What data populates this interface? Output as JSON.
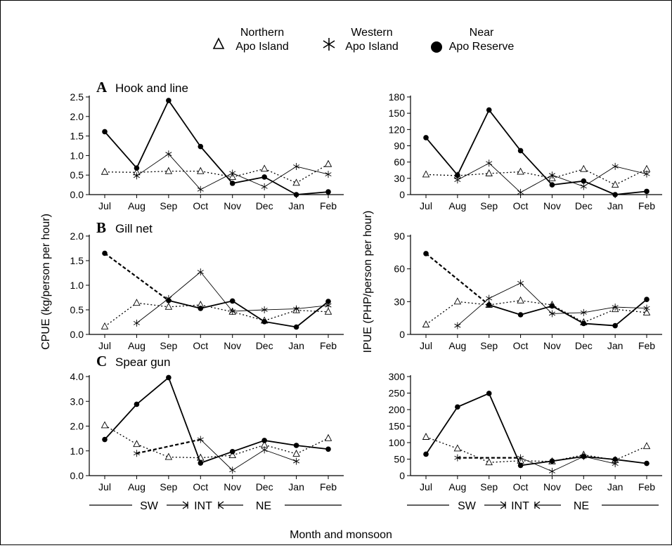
{
  "legend": [
    {
      "marker": "triangle",
      "line1": "Northern",
      "line2": "Apo Island"
    },
    {
      "marker": "asterisk",
      "line1": "Western",
      "line2": "Apo Island"
    },
    {
      "marker": "circle",
      "line1": "Near",
      "line2": "Apo Reserve"
    }
  ],
  "y_label_left": "CPUE (kg/person per hour)",
  "y_label_right": "IPUE (PHP/person per hour)",
  "x_label": "Month and monsoon",
  "panel_titles": [
    {
      "letter": "A",
      "text": "Hook and line"
    },
    {
      "letter": "B",
      "text": "Gill net"
    },
    {
      "letter": "C",
      "text": "Spear gun"
    }
  ],
  "monsoon": [
    "SW",
    "INT",
    "NE"
  ],
  "chart_data": [
    {
      "type": "line",
      "panel": "A",
      "measure": "CPUE",
      "categories": [
        "Jul",
        "Aug",
        "Sep",
        "Oct",
        "Nov",
        "Dec",
        "Jan",
        "Feb"
      ],
      "ylim": [
        0,
        2.5
      ],
      "yticks": [
        "0.0",
        "0.5",
        "1.0",
        "1.5",
        "2.0",
        "2.5"
      ],
      "series": [
        {
          "name": "Northern Apo Island",
          "values": [
            0.58,
            0.57,
            0.6,
            0.6,
            0.45,
            0.66,
            0.3,
            0.78
          ]
        },
        {
          "name": "Western Apo Island",
          "values": [
            null,
            0.48,
            1.04,
            0.13,
            0.55,
            0.2,
            0.72,
            0.52
          ]
        },
        {
          "name": "Near Apo Reserve",
          "values": [
            1.61,
            0.68,
            2.41,
            1.23,
            0.29,
            0.45,
            0.0,
            0.07
          ]
        }
      ]
    },
    {
      "type": "line",
      "panel": "A",
      "measure": "IPUE",
      "categories": [
        "Jul",
        "Aug",
        "Sep",
        "Oct",
        "Nov",
        "Dec",
        "Jan",
        "Feb"
      ],
      "ylim": [
        0,
        180
      ],
      "yticks": [
        "0",
        "30",
        "60",
        "90",
        "120",
        "150",
        "180"
      ],
      "series": [
        {
          "name": "Northern Apo Island",
          "values": [
            37,
            35,
            39,
            42,
            30,
            47,
            18,
            47
          ]
        },
        {
          "name": "Western Apo Island",
          "values": [
            null,
            27,
            58,
            4,
            36,
            15,
            52,
            38
          ]
        },
        {
          "name": "Near Apo Reserve",
          "values": [
            105,
            36,
            156,
            81,
            18,
            25,
            0,
            6
          ]
        }
      ]
    },
    {
      "type": "line",
      "panel": "B",
      "measure": "CPUE",
      "categories": [
        "Jul",
        "Aug",
        "Sep",
        "Oct",
        "Nov",
        "Dec",
        "Jan",
        "Feb"
      ],
      "ylim": [
        0,
        2.0
      ],
      "yticks": [
        "0.0",
        "0.5",
        "1.0",
        "1.5",
        "2.0"
      ],
      "series": [
        {
          "name": "Northern Apo Island",
          "values": [
            0.16,
            0.64,
            0.56,
            0.6,
            0.46,
            0.28,
            0.49,
            0.46
          ]
        },
        {
          "name": "Western Apo Island",
          "values": [
            null,
            0.23,
            0.73,
            1.27,
            0.47,
            0.5,
            0.52,
            0.59
          ]
        },
        {
          "name": "Near Apo Reserve",
          "values": [
            1.65,
            null,
            0.69,
            0.53,
            0.68,
            0.26,
            0.15,
            0.67
          ]
        }
      ]
    },
    {
      "type": "line",
      "panel": "B",
      "measure": "IPUE",
      "categories": [
        "Jul",
        "Aug",
        "Sep",
        "Oct",
        "Nov",
        "Dec",
        "Jan",
        "Feb"
      ],
      "ylim": [
        0,
        90
      ],
      "yticks": [
        "0",
        "30",
        "60",
        "90"
      ],
      "series": [
        {
          "name": "Northern Apo Island",
          "values": [
            9,
            30,
            27,
            31,
            27,
            11,
            23,
            20
          ]
        },
        {
          "name": "Western Apo Island",
          "values": [
            null,
            8,
            33,
            47,
            19,
            20,
            25,
            24
          ]
        },
        {
          "name": "Near Apo Reserve",
          "values": [
            74,
            null,
            27,
            18,
            26,
            10,
            8,
            32
          ]
        }
      ]
    },
    {
      "type": "line",
      "panel": "C",
      "measure": "CPUE",
      "categories": [
        "Jul",
        "Aug",
        "Sep",
        "Oct",
        "Nov",
        "Dec",
        "Jan",
        "Feb"
      ],
      "ylim": [
        0,
        4.0
      ],
      "yticks": [
        "0.0",
        "1.0",
        "2.0",
        "3.0",
        "4.0"
      ],
      "series": [
        {
          "name": "Northern Apo Island",
          "values": [
            2.03,
            1.27,
            0.75,
            0.72,
            0.82,
            1.24,
            0.88,
            1.51
          ]
        },
        {
          "name": "Western Apo Island",
          "values": [
            null,
            0.9,
            null,
            1.46,
            0.22,
            1.04,
            0.58,
            null
          ]
        },
        {
          "name": "Near Apo Reserve",
          "values": [
            1.46,
            2.88,
            3.96,
            0.51,
            0.97,
            1.42,
            1.22,
            1.07
          ]
        }
      ]
    },
    {
      "type": "line",
      "panel": "C",
      "measure": "IPUE",
      "categories": [
        "Jul",
        "Aug",
        "Sep",
        "Oct",
        "Nov",
        "Dec",
        "Jan",
        "Feb"
      ],
      "ylim": [
        0,
        300
      ],
      "yticks": [
        "0",
        "50",
        "100",
        "150",
        "200",
        "250",
        "300"
      ],
      "series": [
        {
          "name": "Northern Apo Island",
          "values": [
            117,
            82,
            40,
            45,
            43,
            63,
            47,
            89
          ]
        },
        {
          "name": "Western Apo Island",
          "values": [
            null,
            54,
            null,
            54,
            13,
            58,
            36,
            null
          ]
        },
        {
          "name": "Near Apo Reserve",
          "values": [
            65,
            208,
            249,
            31,
            44,
            58,
            49,
            37
          ]
        }
      ]
    }
  ]
}
